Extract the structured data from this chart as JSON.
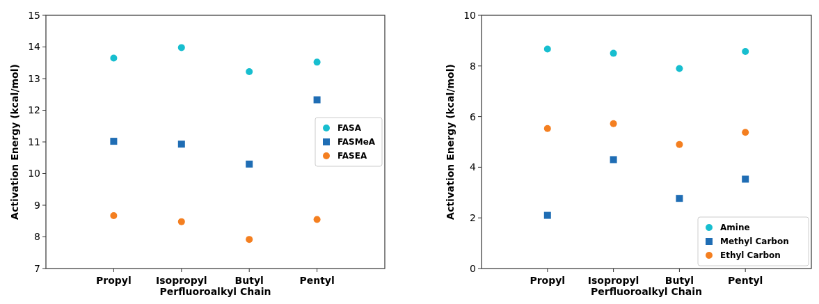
{
  "chart_data": [
    {
      "type": "scatter",
      "xlabel": "Perfluoroalkyl  Chain",
      "ylabel": "Activation Energy (kcal/mol)",
      "categories": [
        "Propyl",
        "Isopropyl",
        "Butyl",
        "Pentyl"
      ],
      "ylim": [
        7,
        15
      ],
      "yticks": [
        7,
        8,
        9,
        10,
        11,
        12,
        13,
        14,
        15
      ],
      "legend": "right",
      "grid": false,
      "series": [
        {
          "name": "FASA",
          "color": "#17becf",
          "marker": "circle",
          "values": [
            13.65,
            13.98,
            13.22,
            13.52
          ]
        },
        {
          "name": "FASMeA",
          "color": "#1f6db4",
          "marker": "square",
          "values": [
            11.02,
            10.93,
            10.3,
            12.33
          ]
        },
        {
          "name": "FASEA",
          "color": "#f47f20",
          "marker": "circle",
          "values": [
            8.67,
            8.48,
            7.92,
            8.55
          ]
        }
      ]
    },
    {
      "type": "scatter",
      "xlabel": "Perfluoroalkyl Chain",
      "ylabel": "Activation Energy (kcal/mol)",
      "categories": [
        "Propyl",
        "Isopropyl",
        "Butyl",
        "Pentyl"
      ],
      "ylim": [
        0,
        10
      ],
      "yticks": [
        0,
        2,
        4,
        6,
        8,
        10
      ],
      "legend": "bottom right",
      "grid": false,
      "series": [
        {
          "name": "Amine",
          "color": "#17becf",
          "marker": "circle",
          "values": [
            8.67,
            8.5,
            7.9,
            8.57
          ]
        },
        {
          "name": "Methyl Carbon",
          "color": "#1f6db4",
          "marker": "square",
          "values": [
            2.1,
            4.3,
            2.77,
            3.53
          ]
        },
        {
          "name": "Ethyl Carbon",
          "color": "#f47f20",
          "marker": "circle",
          "values": [
            5.53,
            5.72,
            4.9,
            5.38
          ]
        }
      ]
    }
  ]
}
